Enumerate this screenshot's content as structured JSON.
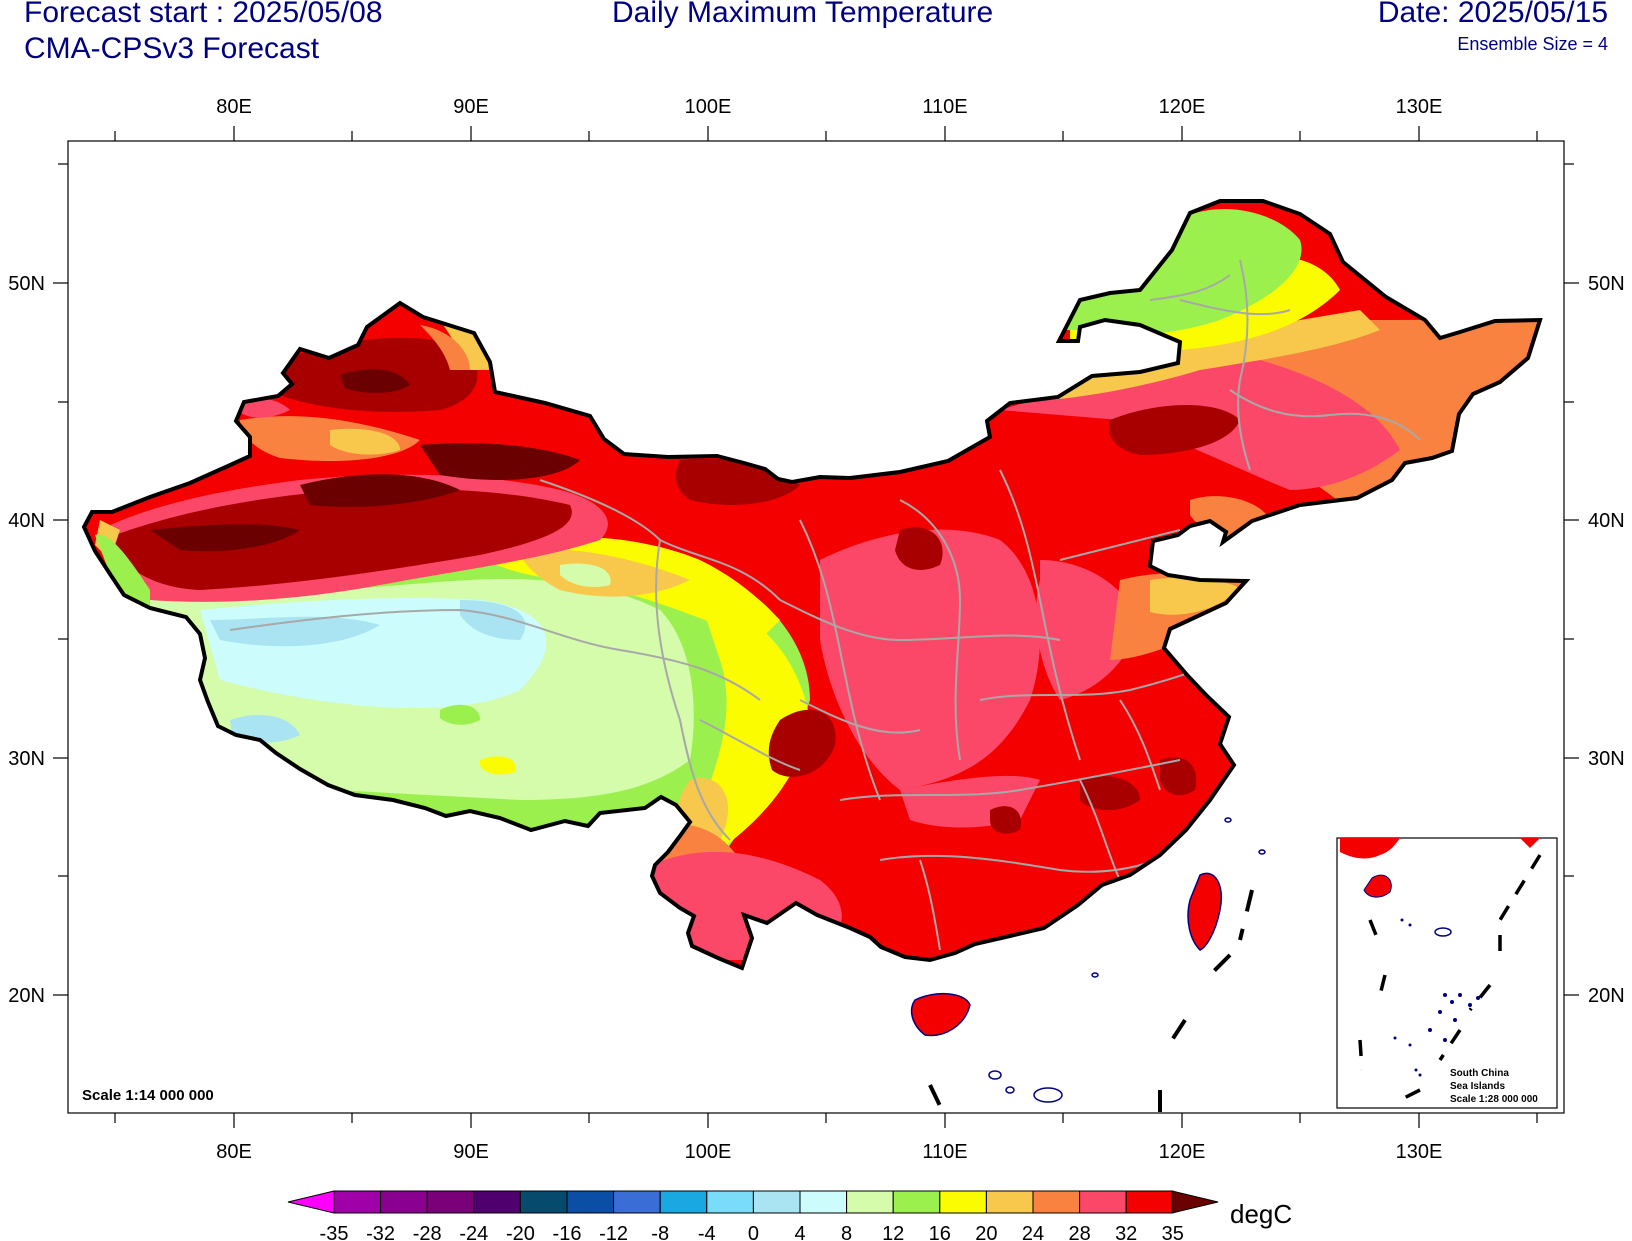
{
  "header": {
    "forecast_start": "Forecast start : 2025/05/08",
    "model": "CMA-CPSv3 Forecast",
    "title": "Daily Maximum Temperature",
    "date": "Date: 2025/05/15",
    "ensemble": "Ensemble Size = 4"
  },
  "axes": {
    "lon_labels": [
      "80E",
      "90E",
      "100E",
      "110E",
      "120E",
      "130E"
    ],
    "lat_labels": [
      "50N",
      "40N",
      "30N",
      "20N"
    ]
  },
  "map": {
    "scale": "Scale 1:14 000 000",
    "inset_label": [
      "South China",
      "Sea Islands",
      "Scale 1:28 000 000"
    ]
  },
  "colorbar": {
    "ticks": [
      "-35",
      "-32",
      "-28",
      "-24",
      "-20",
      "-16",
      "-12",
      "-8",
      "-4",
      "0",
      "4",
      "8",
      "12",
      "16",
      "20",
      "24",
      "28",
      "32",
      "35"
    ],
    "unit": "degC",
    "colors": {
      "lt_-35": "#ff00ff",
      "b1": "#a000a8",
      "b2": "#8a0090",
      "b3": "#7a007a",
      "b4": "#50006e",
      "b5": "#064a6e",
      "b6": "#0a4ea6",
      "b7": "#3a6ed6",
      "b8": "#1aa8e0",
      "b9": "#7adcf8",
      "b10": "#aae4f2",
      "b11": "#ccfcfc",
      "b12": "#d4fcaa",
      "b13": "#9cf04e",
      "b14": "#fcfc00",
      "b15": "#f8c84c",
      "b16": "#fa8240",
      "b17": "#fc4868",
      "b18": "#f40000",
      "gt_35": "#a80000",
      "extreme": "#6a0000"
    }
  }
}
